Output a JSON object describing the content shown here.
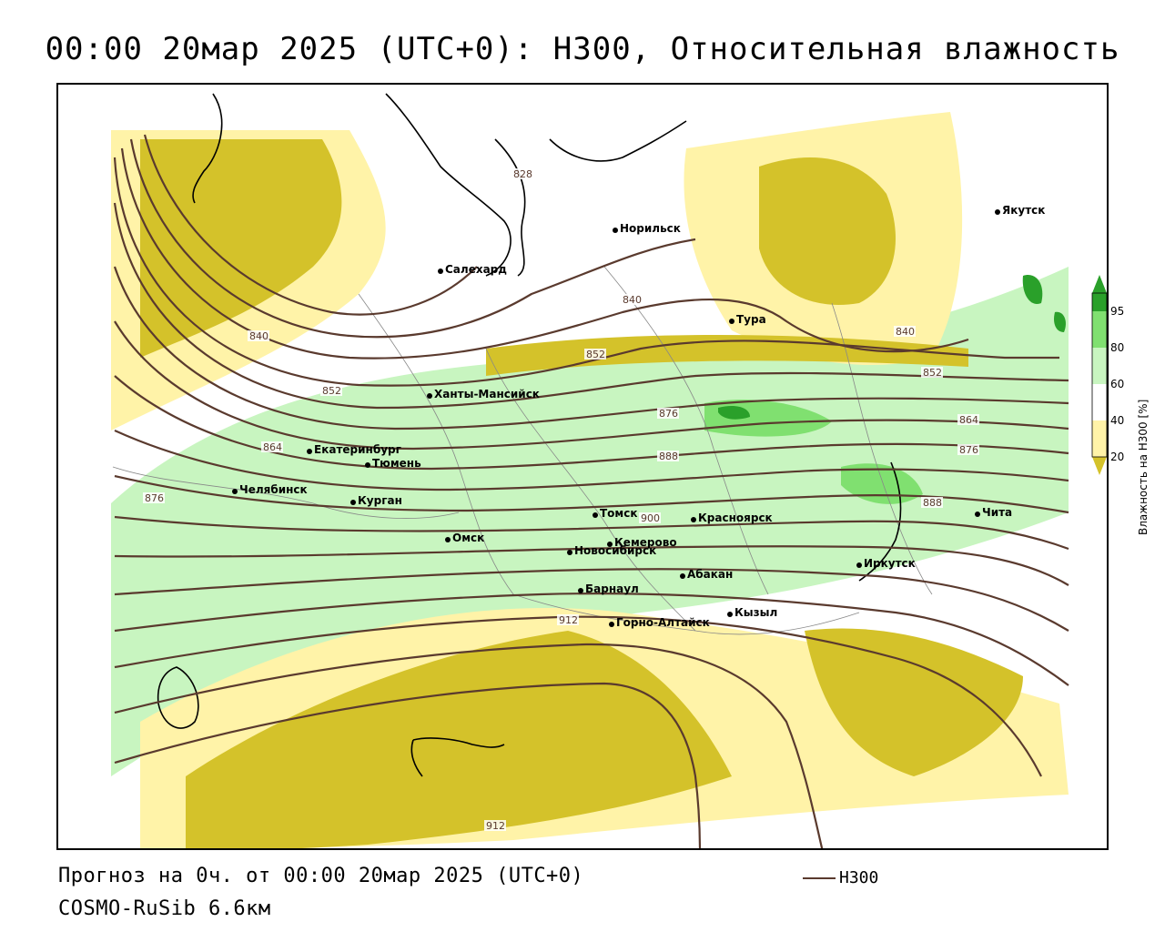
{
  "title": "00:00 20мар 2025 (UTC+0): H300, Относительная влажность",
  "footer": {
    "forecast": "Прогноз на 0ч. от 00:00 20мар 2025 (UTC+0)",
    "model": "COSMO-RuSib 6.6км",
    "line_key": "H300"
  },
  "colors": {
    "contour": "#5a3a2e",
    "humid_light": "#c8f5c0",
    "humid_mid": "#80e070",
    "humid_dark": "#2aa02a",
    "dry_light": "#fff3a8",
    "dry_dark": "#d4c22a",
    "coast": "#000000",
    "border": "#888888"
  },
  "legend": {
    "title": "Влажность на H300 [%]",
    "ticks": [
      "95",
      "80",
      "60",
      "40",
      "20"
    ]
  },
  "cities": [
    {
      "name": "Норильск"
    },
    {
      "name": "Якутск"
    },
    {
      "name": "Салехард"
    },
    {
      "name": "Тура"
    },
    {
      "name": "Ханты-Мансийск"
    },
    {
      "name": "Екатеринбург"
    },
    {
      "name": "Тюмень"
    },
    {
      "name": "Челябинск"
    },
    {
      "name": "Курган"
    },
    {
      "name": "Томск"
    },
    {
      "name": "Красноярск"
    },
    {
      "name": "Омск"
    },
    {
      "name": "Новосибирск"
    },
    {
      "name": "Кемерово"
    },
    {
      "name": "Абакан"
    },
    {
      "name": "Иркутск"
    },
    {
      "name": "Чита"
    },
    {
      "name": "Барнаул"
    },
    {
      "name": "Горно-Алтайск"
    },
    {
      "name": "Кызыл"
    }
  ],
  "contour_labels": [
    "828",
    "840",
    "840",
    "840",
    "852",
    "852",
    "852",
    "864",
    "864",
    "876",
    "876",
    "876",
    "888",
    "888",
    "900",
    "912",
    "912"
  ]
}
